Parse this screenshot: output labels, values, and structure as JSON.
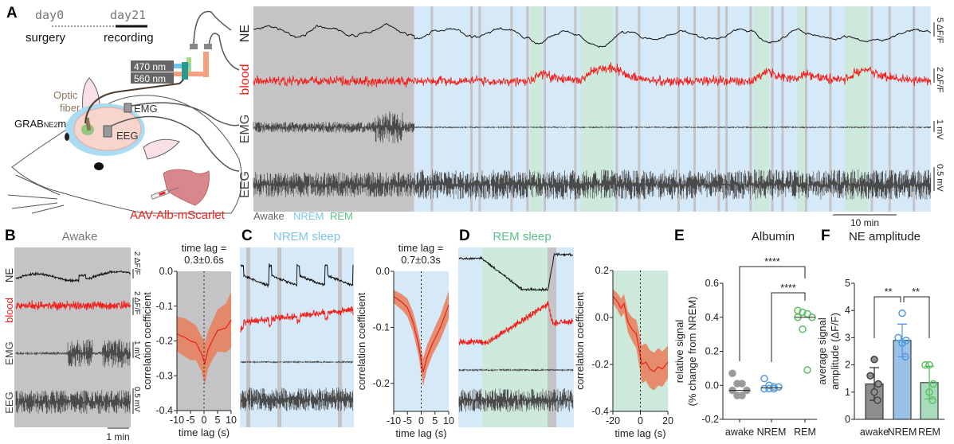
{
  "colors": {
    "awake": "#c4c4c6",
    "nrem": "#d6e9f8",
    "rem": "#cde9dc",
    "ne": "#111111",
    "blood": "#f0201b",
    "ephys": "#4a4a4a",
    "band": "#e8825f",
    "awake_dot": "#9a9a9c",
    "nrem_dot": "#4f9be0",
    "rem_dot": "#58c060",
    "nrem_label": "#7ec5ec",
    "rem_label": "#5cbf8a"
  },
  "panel_a": {
    "label": "A",
    "timeline": {
      "day0": "day0",
      "day21": "day21",
      "surgery": "surgery",
      "recording": "recording"
    },
    "lasers": [
      "470 nm",
      "560 nm"
    ],
    "optic_fiber": [
      "Optic",
      "fiber"
    ],
    "sensor": {
      "main": "GRAB",
      "sub": "NE2",
      "suffix": "m"
    },
    "electrodes": [
      "EMG",
      "EEG"
    ],
    "virus": "AAV-Alb-mScarlet",
    "traces": [
      "NE",
      "blood",
      "EMG",
      "EEG"
    ],
    "scalebars": [
      "5 ΔF/F",
      "2 ΔF/F",
      "1 mV",
      "0.5 mV"
    ],
    "time_scalebar": "10 min",
    "legend": [
      "Awake",
      "NREM",
      "REM"
    ]
  },
  "panel_b": {
    "label": "B",
    "title": "Awake",
    "traces": [
      "NE",
      "blood",
      "EMG",
      "EEG"
    ],
    "scalebars": [
      "2 ΔF/F",
      "2 ΔF/F",
      "1 mV",
      "0.5 mV"
    ],
    "time_scalebar": "1 min",
    "lag_line1": "time lag =",
    "lag_line2": "0.3±0.6s"
  },
  "panel_c": {
    "label": "C",
    "title": "NREM sleep",
    "lag_line1": "time lag =",
    "lag_line2": "0.7±0.3s"
  },
  "panel_d": {
    "label": "D",
    "title": "REM sleep"
  },
  "panel_e": {
    "label": "E",
    "title": "Albumin",
    "sig1": "****",
    "sig2": "****"
  },
  "panel_f": {
    "label": "F",
    "title": "NE amplitude",
    "sig1": "**",
    "sig2": "**"
  },
  "chart_data": [
    {
      "id": "A-hypnogram",
      "type": "area",
      "xunit": "min",
      "segments": [
        [
          "awake",
          0,
          25.2
        ],
        [
          "nrem",
          25.2,
          106.2
        ]
      ],
      "rem": [
        [
          43.4,
          45.3
        ],
        [
          51.3,
          56.5
        ],
        [
          78.4,
          80.9
        ],
        [
          85.3,
          86.8
        ],
        [
          92.8,
          96.5
        ]
      ],
      "brief_awake": [
        27.8,
        34,
        35.3,
        40.3,
        42.8,
        45.5,
        50.3,
        56.8,
        60.3,
        66.5,
        69,
        72.8,
        74,
        77.8,
        81.2,
        82.8,
        86.5,
        90.3,
        96.8,
        99.6,
        103.4
      ]
    },
    {
      "id": "B-xcorr",
      "type": "line",
      "xlabel": "time lag (s)",
      "ylabel": "correlation coefficient",
      "xlim": [
        -10,
        10
      ],
      "ylim": [
        -0.4,
        0.0
      ],
      "xticks": [
        "-10",
        "-5",
        "0",
        "5",
        "10"
      ],
      "yticks": [
        "0.0",
        "-0.1",
        "-0.2",
        "-0.3",
        "-0.4"
      ],
      "x": [
        -10,
        -7,
        -5,
        -3,
        -1,
        0.3,
        1.5,
        3,
        5,
        8,
        10
      ],
      "mean": [
        -0.18,
        -0.19,
        -0.2,
        -0.205,
        -0.235,
        -0.265,
        -0.225,
        -0.2,
        -0.17,
        -0.163,
        -0.14
      ],
      "sem": [
        0.05,
        0.055,
        0.055,
        0.05,
        0.05,
        0.06,
        0.055,
        0.055,
        0.06,
        0.07,
        0.08
      ],
      "background": "awake"
    },
    {
      "id": "C-xcorr",
      "type": "line",
      "xlabel": "time lag (s)",
      "ylabel": "correlation coefficient",
      "xlim": [
        -10,
        10
      ],
      "ylim": [
        -0.25,
        0.0
      ],
      "xticks": [
        "-10",
        "-5",
        "0",
        "5",
        "10"
      ],
      "yticks": [
        "0.0",
        "-0.1",
        "-0.2"
      ],
      "x": [
        -10,
        -7,
        -5,
        -3,
        -1,
        0.7,
        2,
        4,
        7,
        10
      ],
      "mean": [
        -0.045,
        -0.055,
        -0.065,
        -0.09,
        -0.13,
        -0.18,
        -0.155,
        -0.13,
        -0.1,
        -0.06
      ],
      "sem": [
        0.012,
        0.014,
        0.016,
        0.018,
        0.02,
        0.025,
        0.022,
        0.02,
        0.022,
        0.025
      ],
      "background": "nrem"
    },
    {
      "id": "D-xcorr",
      "type": "line",
      "xlabel": "time lag (s)",
      "ylabel": "correlation coefficient",
      "xlim": [
        -20,
        20
      ],
      "ylim": [
        -0.4,
        0.2
      ],
      "xticks": [
        "-20",
        "0",
        "20"
      ],
      "yticks": [
        "0.2",
        "0.0",
        "-0.2",
        "-0.4"
      ],
      "x": [
        -20,
        -17,
        -14,
        -12,
        -9,
        -6,
        -3,
        -1,
        1,
        4,
        7,
        10,
        13,
        16,
        20
      ],
      "mean": [
        0.09,
        0.07,
        0.04,
        0.06,
        -0.02,
        -0.05,
        -0.07,
        -0.13,
        -0.2,
        -0.19,
        -0.22,
        -0.23,
        -0.21,
        -0.22,
        -0.19
      ],
      "sem": [
        0.03,
        0.035,
        0.04,
        0.04,
        0.045,
        0.05,
        0.06,
        0.07,
        0.08,
        0.08,
        0.08,
        0.08,
        0.08,
        0.075,
        0.07
      ],
      "background": "rem"
    },
    {
      "id": "E",
      "type": "scatter",
      "title": "Albumin",
      "ylabel": "relative signal",
      "ylabel2": "(% change from NREM)",
      "ylim": [
        -0.2,
        0.6
      ],
      "categories": [
        "awake",
        "NREM",
        "REM"
      ],
      "yticks": [
        "0.6",
        "0.4",
        "0.2",
        "0.0",
        "-0.2"
      ],
      "points": [
        [
          0.07,
          0.01,
          0.01,
          -0.03,
          -0.03,
          -0.06,
          -0.06
        ],
        [
          0.04,
          0.0,
          -0.01,
          -0.01,
          -0.02,
          -0.02,
          -0.02
        ],
        [
          0.44,
          0.43,
          0.42,
          0.4,
          0.4,
          0.33,
          0.09
        ]
      ],
      "medians": [
        -0.03,
        -0.015,
        0.4
      ],
      "comparisons": [
        {
          "a": "awake",
          "b": "REM",
          "label": "****"
        },
        {
          "a": "NREM",
          "b": "REM",
          "label": "****"
        }
      ]
    },
    {
      "id": "F",
      "type": "bar",
      "title": "NE amplitude",
      "ylabel": "average signal",
      "ylabel2": "amplitude (ΔF/F)",
      "ylim": [
        0,
        5
      ],
      "categories": [
        "awake",
        "NREM",
        "REM"
      ],
      "yticks": [
        "5",
        "4",
        "3",
        "2",
        "1",
        "0"
      ],
      "values": [
        1.3,
        2.9,
        1.35
      ],
      "sd": [
        0.6,
        0.6,
        0.6
      ],
      "points": [
        [
          2.2,
          1.6,
          1.3,
          1.0,
          0.7
        ],
        [
          3.9,
          3.0,
          2.9,
          2.8,
          2.3
        ],
        [
          2.0,
          2.0,
          1.3,
          1.0,
          0.7
        ]
      ],
      "comparisons": [
        {
          "a": "awake",
          "b": "NREM",
          "label": "**"
        },
        {
          "a": "NREM",
          "b": "REM",
          "label": "**"
        }
      ]
    }
  ]
}
